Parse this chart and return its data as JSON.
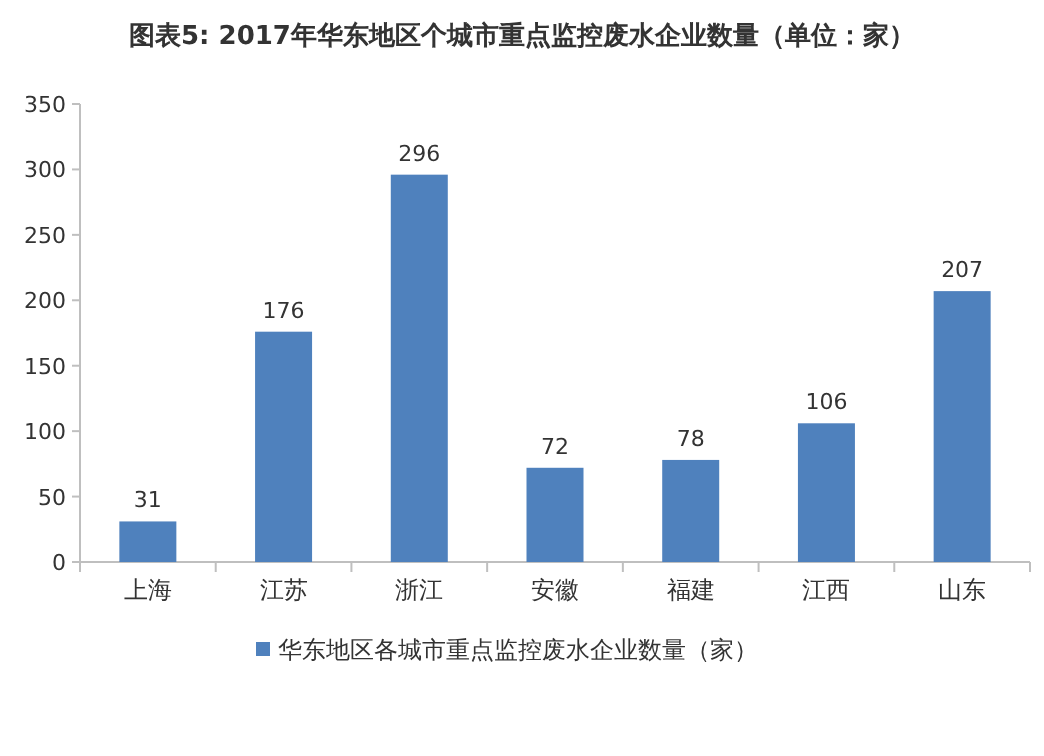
{
  "chart_data": {
    "type": "bar",
    "title": "图表5: 2017年华东地区个城市重点监控废水企业数量（单位：家）",
    "categories": [
      "上海",
      "江苏",
      "浙江",
      "安徽",
      "福建",
      "江西",
      "山东"
    ],
    "series": [
      {
        "name": "华东地区各城市重点监控废水企业数量（家）",
        "color": "#4f81bd",
        "values": [
          31,
          176,
          296,
          72,
          78,
          106,
          207
        ]
      }
    ],
    "ylim": [
      0,
      350
    ],
    "yticks": [
      0,
      50,
      100,
      150,
      200,
      250,
      300,
      350
    ],
    "data_labels": true,
    "legend": "bottom"
  }
}
